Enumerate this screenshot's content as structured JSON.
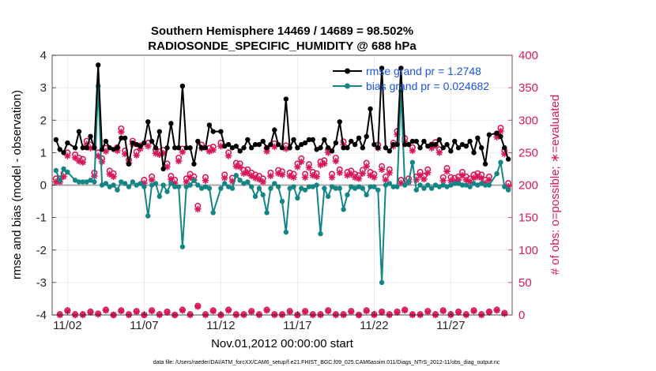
{
  "chart_data": {
    "type": "line",
    "title_line1": "Southern Hemisphere 14469 / 14689 = 98.502%",
    "title_line2": "RADIOSONDE_SPECIFIC_HUMIDITY @ 688 hPa",
    "ylabel_left": "rmse and bias (model - observation)",
    "ylabel_right": "# of obs: o=possible; ∗=evaluated",
    "xlabel": "Nov.01,2012 00:00:00 start",
    "footer": "data file: /Users/raeder/DAI/ATM_forcXX/CAM6_setup/f.e21.FHIST_BGC.f09_025.CAM6assim.011/Diags_NTrS_2012-11/obs_diag_output.nc",
    "xlim": [
      0.5,
      30.5
    ],
    "ylim_left": [
      -4,
      4
    ],
    "ylim_right": [
      0,
      400
    ],
    "xticks": [
      1.5,
      6.5,
      11.5,
      16.5,
      21.5,
      26.5
    ],
    "xtick_labels": [
      "11/02",
      "11/07",
      "11/12",
      "11/17",
      "11/22",
      "11/27"
    ],
    "yticks_left": [
      "4",
      "3",
      "2",
      "1",
      "0",
      "-1",
      "-2",
      "-3",
      "-4"
    ],
    "yticks_right": [
      "400",
      "350",
      "300",
      "250",
      "200",
      "150",
      "100",
      "50",
      "0"
    ],
    "legend": [
      {
        "name": "rmse",
        "label": "rmse grand pr = 1.2748"
      },
      {
        "name": "bias",
        "label": "bias grand pr = 0.024682"
      }
    ],
    "colors": {
      "rmse": "#000000",
      "bias": "#138585",
      "obs": "#d9185a",
      "zero": "#a0a0a0"
    },
    "x": [
      0.75,
      1.0,
      1.25,
      1.5,
      2.0,
      2.25,
      2.5,
      2.75,
      3.0,
      3.25,
      3.5,
      3.75,
      4.0,
      4.25,
      4.5,
      4.75,
      5.0,
      5.25,
      5.5,
      5.75,
      6.0,
      6.25,
      6.5,
      6.75,
      7.0,
      7.25,
      7.5,
      7.75,
      8.0,
      8.25,
      8.5,
      8.75,
      9.0,
      9.25,
      9.5,
      9.75,
      10.0,
      10.25,
      10.5,
      10.75,
      11.0,
      11.5,
      11.75,
      12.0,
      12.25,
      12.5,
      12.75,
      13.0,
      13.25,
      13.5,
      13.75,
      14.0,
      14.25,
      14.5,
      14.75,
      15.0,
      15.25,
      15.5,
      15.75,
      16.0,
      16.25,
      16.5,
      16.75,
      17.0,
      17.25,
      17.5,
      17.75,
      18.0,
      18.25,
      18.5,
      18.75,
      19.0,
      19.25,
      19.5,
      19.75,
      20.0,
      20.25,
      20.5,
      20.75,
      21.0,
      21.25,
      21.5,
      21.75,
      22.0,
      22.25,
      22.5,
      22.75,
      23.0,
      23.25,
      23.5,
      23.75,
      24.0,
      24.25,
      24.5,
      24.75,
      25.0,
      25.25,
      25.5,
      25.75,
      26.0,
      26.25,
      26.5,
      26.75,
      27.0,
      27.25,
      27.5,
      27.75,
      28.0,
      28.25,
      28.5,
      28.75,
      29.0,
      29.5,
      29.75,
      30.0,
      30.25
    ],
    "series": [
      {
        "name": "rmse",
        "values": [
          1.4,
          1.1,
          1.0,
          1.3,
          1.15,
          1.65,
          1.15,
          1.15,
          1.5,
          1.15,
          3.7,
          1.1,
          1.35,
          1.15,
          1.1,
          1.15,
          1.45,
          1.45,
          0.65,
          1.3,
          1.25,
          1.2,
          1.3,
          1.95,
          1.35,
          1.15,
          1.65,
          0.5,
          1.15,
          1.9,
          1.15,
          1.15,
          3.05,
          1.15,
          1.15,
          0.65,
          1.35,
          1.15,
          1.15,
          1.85,
          1.65,
          1.65,
          1.2,
          1.25,
          1.15,
          1.2,
          1.05,
          1.15,
          1.4,
          1.15,
          1.25,
          1.25,
          1.35,
          1.15,
          1.25,
          1.7,
          1.25,
          1.15,
          2.65,
          1.15,
          1.4,
          1.15,
          1.25,
          1.3,
          1.4,
          1.4,
          1.1,
          1.15,
          1.4,
          1.15,
          1.05,
          1.3,
          1.95,
          1.15,
          1.15,
          1.35,
          1.25,
          1.45,
          1.15,
          1.5,
          2.35,
          1.25,
          1.15,
          3.6,
          1.15,
          1.05,
          1.25,
          1.25,
          3.6,
          1.25,
          1.25,
          1.35,
          1.35,
          1.15,
          1.35,
          1.2,
          1.25,
          1.25,
          1.4,
          1.15,
          1.25,
          1.05,
          1.35,
          1.15,
          1.25,
          1.2,
          1.35,
          1.0,
          1.45,
          1.15,
          0.65,
          1.55,
          1.6,
          1.5,
          1.15,
          0.8
        ]
      },
      {
        "name": "bias",
        "values": [
          0.45,
          0.15,
          0.5,
          0.4,
          0.15,
          0.1,
          0.1,
          0.1,
          0.15,
          0.1,
          3.05,
          0.0,
          0.05,
          -0.05,
          0.0,
          -0.15,
          0.1,
          0.05,
          -0.05,
          0.1,
          0.0,
          0.05,
          -0.05,
          -0.95,
          0.0,
          0.05,
          -0.35,
          0.0,
          -0.2,
          0.05,
          -0.05,
          -0.05,
          -1.9,
          -0.05,
          0.0,
          0.15,
          0.0,
          -0.1,
          -0.05,
          -0.1,
          -0.85,
          -0.1,
          0.05,
          -0.05,
          -0.1,
          0.3,
          0.15,
          0.05,
          0.1,
          -0.05,
          -0.35,
          -0.1,
          -0.3,
          -0.85,
          -0.1,
          0.05,
          -0.05,
          -0.5,
          -1.45,
          -0.1,
          -0.05,
          -0.4,
          -0.1,
          -0.15,
          -0.05,
          -0.05,
          0.0,
          -1.5,
          -0.1,
          -0.35,
          -0.05,
          -0.1,
          -0.1,
          -0.75,
          -0.3,
          -0.05,
          -0.1,
          -0.05,
          -0.1,
          -0.3,
          -0.05,
          -0.05,
          -0.15,
          -3.0,
          0.0,
          0.05,
          -0.05,
          -0.05,
          2.9,
          0.0,
          0.1,
          0.7,
          -0.15,
          0.0,
          -0.1,
          0.0,
          -0.1,
          0.0,
          -0.05,
          0.0,
          -0.05,
          0.0,
          0.05,
          0.05,
          0.0,
          0.0,
          -0.05,
          0.05,
          0.0,
          0.05,
          0.0,
          0.0,
          0.35,
          0.7,
          -0.05,
          -0.15
        ]
      },
      {
        "name": "obs_possible",
        "values": [
          210,
          210,
          218,
          250,
          247,
          242,
          240,
          268,
          262,
          219,
          250,
          241,
          257,
          222,
          218,
          258,
          287,
          253,
          239,
          268,
          251,
          261,
          208,
          265,
          213,
          254,
          252,
          254,
          233,
          214,
          208,
          242,
          256,
          210,
          217,
          213,
          168,
          262,
          212,
          257,
          259,
          265,
          216,
          250,
          211,
          234,
          233,
          223,
          224,
          219,
          216,
          214,
          210,
          257,
          219,
          264,
          223,
          221,
          261,
          219,
          217,
          233,
          241,
          217,
          232,
          220,
          218,
          236,
          238,
          255,
          217,
          242,
          224,
          267,
          220,
          222,
          217,
          215,
          223,
          234,
          220,
          217,
          262,
          229,
          213,
          224,
          265,
          283,
          208,
          272,
          210,
          258,
          213,
          220,
          214,
          224,
          262,
          266,
          255,
          212,
          226,
          212,
          211,
          213,
          220,
          213,
          210,
          216,
          218,
          216,
          208,
          213,
          279,
          288,
          253,
          203
        ]
      },
      {
        "name": "obs_evaluated",
        "values": [
          205,
          205,
          213,
          245,
          242,
          237,
          235,
          263,
          257,
          214,
          245,
          236,
          252,
          217,
          213,
          253,
          282,
          248,
          234,
          263,
          246,
          256,
          203,
          260,
          208,
          249,
          247,
          249,
          228,
          209,
          203,
          237,
          251,
          205,
          212,
          208,
          163,
          257,
          207,
          252,
          254,
          260,
          211,
          245,
          206,
          229,
          228,
          218,
          219,
          214,
          211,
          209,
          205,
          252,
          214,
          259,
          218,
          216,
          256,
          214,
          212,
          228,
          236,
          212,
          227,
          215,
          213,
          231,
          233,
          250,
          212,
          237,
          219,
          262,
          215,
          217,
          212,
          210,
          218,
          229,
          215,
          212,
          257,
          224,
          208,
          219,
          260,
          278,
          203,
          267,
          205,
          253,
          208,
          215,
          209,
          219,
          257,
          261,
          250,
          207,
          221,
          207,
          206,
          208,
          215,
          208,
          205,
          211,
          213,
          211,
          203,
          208,
          274,
          283,
          248,
          198
        ]
      },
      {
        "name": "obs_low_possible",
        "x": [
          1,
          1.5,
          2,
          2.5,
          3,
          3.5,
          4,
          4.5,
          5,
          5.5,
          6,
          6.5,
          7,
          7.5,
          8,
          8.5,
          9,
          9.5,
          10,
          10.5,
          11,
          11.5,
          12,
          12.5,
          13,
          13.5,
          14,
          14.5,
          15,
          15.5,
          16,
          16.5,
          17,
          17.5,
          18,
          18.5,
          19,
          19.5,
          20,
          20.5,
          21,
          21.5,
          22,
          22.5,
          23,
          23.5,
          24,
          24.5,
          25,
          25.5,
          26,
          26.5,
          27,
          27.5,
          28,
          28.5,
          29,
          29.5,
          30
        ],
        "values": [
          1,
          7,
          1,
          1,
          5,
          2,
          8,
          0,
          7,
          1,
          6,
          0,
          7,
          1,
          5,
          0,
          8,
          1,
          14,
          1,
          7,
          0,
          8,
          1,
          1,
          6,
          1,
          8,
          1,
          1,
          6,
          0,
          6,
          1,
          1,
          7,
          1,
          1,
          6,
          0,
          7,
          1,
          5,
          1,
          5,
          8,
          1,
          1,
          6,
          1,
          7,
          1,
          5,
          1,
          7,
          1,
          5,
          8,
          3
        ]
      },
      {
        "name": "obs_low_evaluated",
        "x": [
          1,
          1.5,
          2,
          2.5,
          3,
          3.5,
          4,
          4.5,
          5,
          5.5,
          6,
          6.5,
          7,
          7.5,
          8,
          8.5,
          9,
          9.5,
          10,
          10.5,
          11,
          11.5,
          12,
          12.5,
          13,
          13.5,
          14,
          14.5,
          15,
          15.5,
          16,
          16.5,
          17,
          17.5,
          18,
          18.5,
          19,
          19.5,
          20,
          20.5,
          21,
          21.5,
          22,
          22.5,
          23,
          23.5,
          24,
          24.5,
          25,
          25.5,
          26,
          26.5,
          27,
          27.5,
          28,
          28.5,
          29,
          29.5,
          30
        ],
        "values": [
          0,
          6,
          0,
          0,
          4,
          1,
          7,
          0,
          6,
          0,
          5,
          0,
          6,
          0,
          4,
          0,
          7,
          0,
          13,
          0,
          6,
          0,
          7,
          0,
          0,
          5,
          0,
          7,
          0,
          0,
          5,
          0,
          5,
          0,
          0,
          6,
          0,
          0,
          5,
          0,
          6,
          0,
          4,
          0,
          4,
          7,
          0,
          0,
          5,
          0,
          6,
          0,
          4,
          0,
          6,
          0,
          4,
          7,
          2
        ]
      }
    ]
  }
}
